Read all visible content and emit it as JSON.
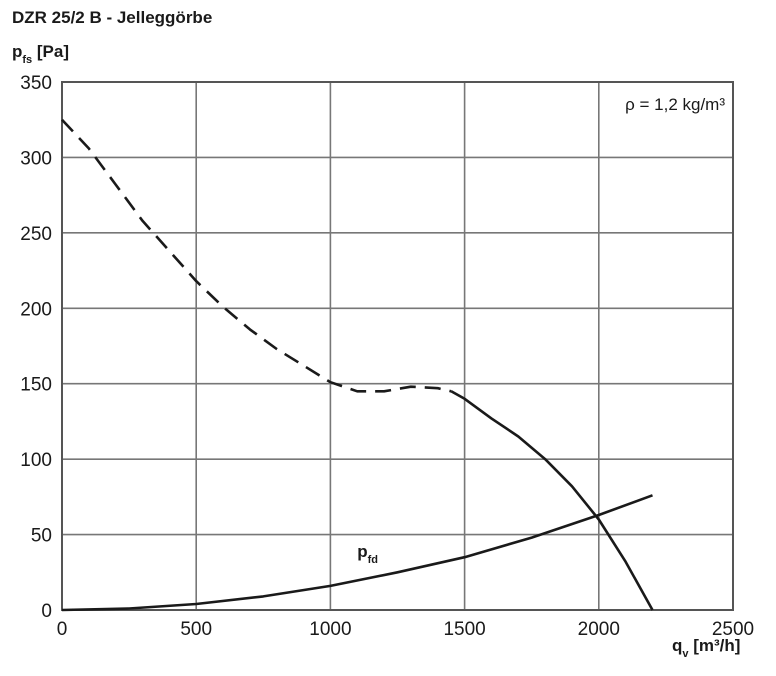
{
  "chart_data": {
    "type": "line",
    "title": "DZR 25/2 B - Jelleggörbe",
    "ylabel": {
      "main": "p",
      "sub": "fs",
      "unit": " [Pa]"
    },
    "xlabel": {
      "main": "q",
      "sub": "v",
      "unit": " [m³/h]"
    },
    "xlim": [
      0,
      2500
    ],
    "ylim": [
      0,
      350
    ],
    "xticks": [
      0,
      500,
      1000,
      1500,
      2000,
      2500
    ],
    "yticks": [
      0,
      50,
      100,
      150,
      200,
      250,
      300,
      350
    ],
    "grid": true,
    "annotation": "ρ = 1,2 kg/m³",
    "series": [
      {
        "style": "dashed",
        "x": [
          0,
          100,
          200,
          300,
          400,
          500,
          600,
          700,
          800,
          900,
          1000,
          1100,
          1200,
          1300,
          1400,
          1450
        ],
        "y": [
          325,
          306,
          282,
          258,
          238,
          218,
          201,
          186,
          173,
          162,
          151,
          145,
          145,
          148,
          147,
          145
        ]
      },
      {
        "style": "solid",
        "x": [
          1450,
          1500,
          1600,
          1700,
          1800,
          1900,
          2000,
          2100,
          2200
        ],
        "y": [
          145,
          140,
          127,
          115,
          100,
          82,
          60,
          32,
          0
        ]
      },
      {
        "style": "solid",
        "label": {
          "main": "p",
          "sub": "fd"
        },
        "x": [
          0,
          250,
          500,
          750,
          1000,
          1250,
          1500,
          1750,
          2000,
          2200
        ],
        "y": [
          0,
          1,
          4,
          9,
          16,
          25,
          35,
          48,
          63,
          76
        ]
      }
    ]
  }
}
